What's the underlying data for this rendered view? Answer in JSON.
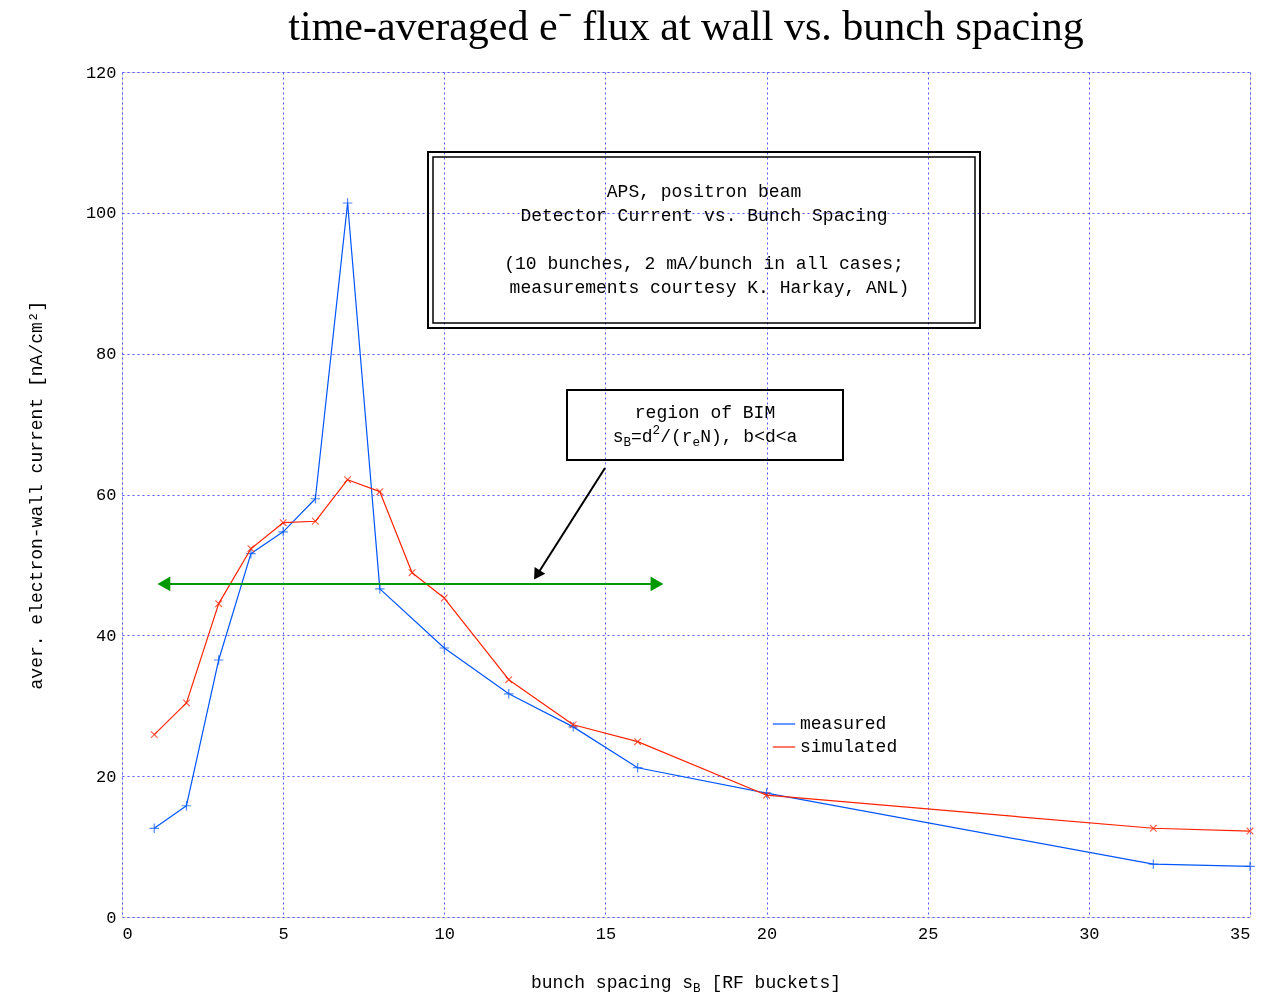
{
  "chart_data": {
    "type": "line",
    "title": "time-averaged e⁻ flux at wall vs. bunch spacing",
    "xlabel": "bunch spacing s$_{B}$ [RF buckets]",
    "ylabel": "aver. electron-wall current [nA/cm²]",
    "xlim": [
      0,
      35
    ],
    "xticks": [
      0,
      5,
      10,
      15,
      20,
      25,
      30,
      35
    ],
    "ylim": [
      0,
      120
    ],
    "yticks": [
      0,
      20,
      40,
      60,
      80,
      100,
      120
    ],
    "grid": true,
    "legend": "bottom right",
    "line_style": "solid",
    "series": [
      {
        "name": "measured",
        "color": "#0055ff",
        "marker": "cross",
        "x": [
          1,
          2,
          3,
          4,
          5,
          6,
          7,
          8,
          10,
          12,
          14,
          16,
          20,
          32,
          35
        ],
        "values": [
          12.6,
          15.8,
          36.5,
          51.6,
          54.7,
          59.4,
          101.4,
          46.6,
          38.2,
          31.7,
          27.0,
          21.2,
          17.6,
          7.5,
          7.2
        ]
      },
      {
        "name": "simulated",
        "color": "#ff2200",
        "marker": "cross",
        "x": [
          1,
          2,
          3,
          4,
          5,
          6,
          7,
          8,
          9,
          10,
          12,
          14,
          16,
          20,
          32,
          35
        ],
        "values": [
          25.9,
          30.4,
          44.5,
          52.3,
          56.0,
          56.2,
          62.1,
          60.4,
          48.9,
          45.3,
          33.7,
          27.3,
          24.9,
          17.3,
          12.6,
          12.2
        ]
      },
      {
        "type": "line",
        "color": "#009900",
        "marker": "triangle",
        "x": [
          1.3,
          16.6
        ],
        "values": [
          47.3,
          47.3
        ]
      }
    ],
    "annotations": [
      "APS, positron beam\nDetector Current vs. Bunch Spacing\n\n(10 bunches, 2 mA/bunch in all cases;\n measurements courtesy K. Harkay, ANL)",
      "region of BIM\ns$_{B}$=d$^{2}$/(r$_{e}$N), b<d<a"
    ]
  }
}
